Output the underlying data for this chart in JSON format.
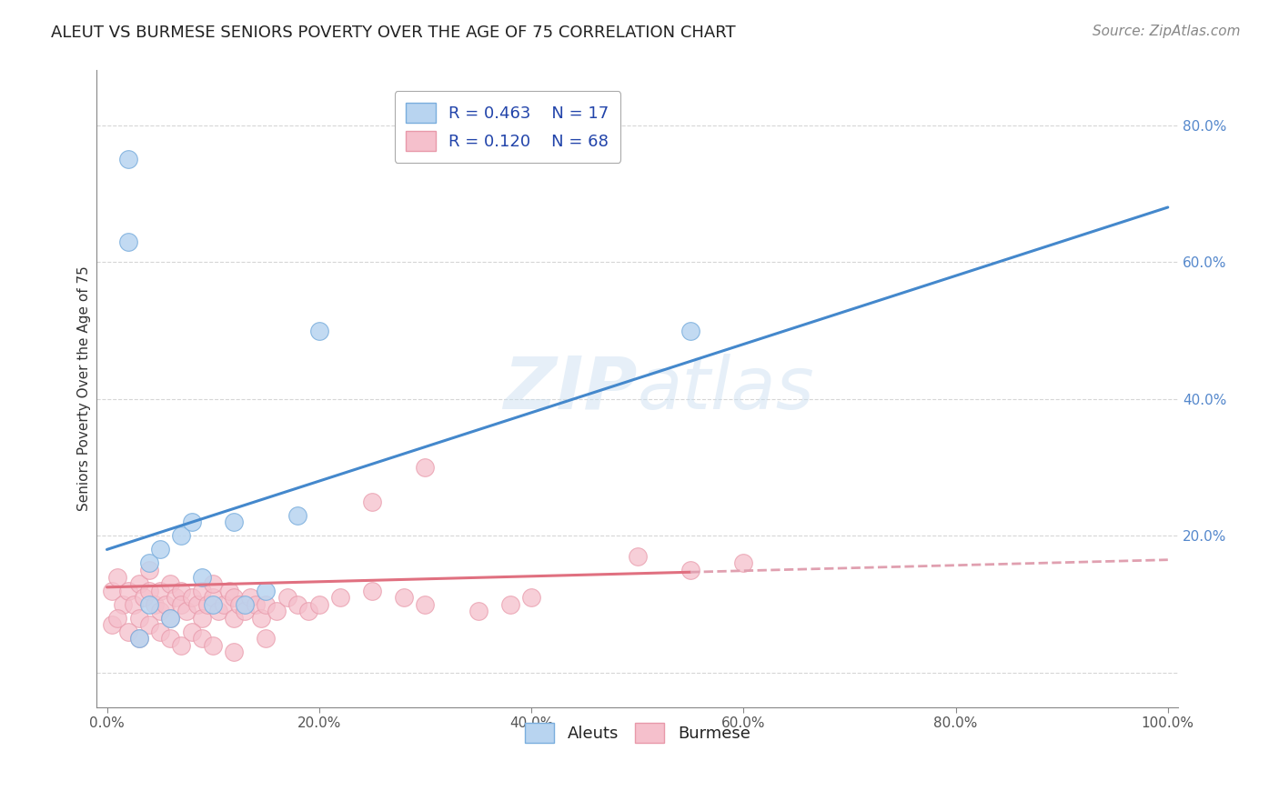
{
  "title": "ALEUT VS BURMESE SENIORS POVERTY OVER THE AGE OF 75 CORRELATION CHART",
  "source": "Source: ZipAtlas.com",
  "ylabel": "Seniors Poverty Over the Age of 75",
  "xlabel": "",
  "xlim": [
    -0.01,
    1.01
  ],
  "ylim": [
    -0.05,
    0.88
  ],
  "background_color": "#ffffff",
  "watermark_line1": "ZIP",
  "watermark_line2": "atlas",
  "aleut_face": "#b8d4f0",
  "aleut_edge": "#7aaedd",
  "burmese_face": "#f5c0cc",
  "burmese_edge": "#e899aa",
  "aleut_R": 0.463,
  "aleut_N": 17,
  "burmese_R": 0.12,
  "burmese_N": 68,
  "aleut_line_x0": 0.0,
  "aleut_line_y0": 0.18,
  "aleut_line_x1": 1.0,
  "aleut_line_y1": 0.68,
  "burmese_line_x0": 0.0,
  "burmese_line_y0": 0.125,
  "burmese_line_x1": 1.0,
  "burmese_line_y1": 0.165,
  "aleut_x": [
    0.02,
    0.03,
    0.04,
    0.05,
    0.06,
    0.07,
    0.08,
    0.09,
    0.1,
    0.12,
    0.13,
    0.15,
    0.18,
    0.2,
    0.55,
    0.02,
    0.04
  ],
  "aleut_y": [
    0.63,
    0.05,
    0.16,
    0.18,
    0.08,
    0.2,
    0.22,
    0.14,
    0.1,
    0.22,
    0.1,
    0.12,
    0.23,
    0.5,
    0.5,
    0.75,
    0.1
  ],
  "burmese_x": [
    0.005,
    0.01,
    0.015,
    0.02,
    0.025,
    0.03,
    0.03,
    0.035,
    0.04,
    0.04,
    0.045,
    0.05,
    0.05,
    0.055,
    0.06,
    0.06,
    0.065,
    0.07,
    0.07,
    0.075,
    0.08,
    0.085,
    0.09,
    0.09,
    0.095,
    0.1,
    0.1,
    0.105,
    0.11,
    0.115,
    0.12,
    0.12,
    0.125,
    0.13,
    0.135,
    0.14,
    0.145,
    0.15,
    0.16,
    0.17,
    0.18,
    0.19,
    0.2,
    0.22,
    0.25,
    0.28,
    0.3,
    0.35,
    0.38,
    0.4,
    0.005,
    0.01,
    0.02,
    0.03,
    0.04,
    0.05,
    0.06,
    0.07,
    0.08,
    0.09,
    0.1,
    0.12,
    0.15,
    0.5,
    0.55,
    0.6,
    0.25,
    0.3
  ],
  "burmese_y": [
    0.12,
    0.14,
    0.1,
    0.12,
    0.1,
    0.13,
    0.08,
    0.11,
    0.12,
    0.15,
    0.1,
    0.09,
    0.12,
    0.1,
    0.13,
    0.08,
    0.11,
    0.12,
    0.1,
    0.09,
    0.11,
    0.1,
    0.12,
    0.08,
    0.1,
    0.11,
    0.13,
    0.09,
    0.1,
    0.12,
    0.11,
    0.08,
    0.1,
    0.09,
    0.11,
    0.1,
    0.08,
    0.1,
    0.09,
    0.11,
    0.1,
    0.09,
    0.1,
    0.11,
    0.12,
    0.11,
    0.1,
    0.09,
    0.1,
    0.11,
    0.07,
    0.08,
    0.06,
    0.05,
    0.07,
    0.06,
    0.05,
    0.04,
    0.06,
    0.05,
    0.04,
    0.03,
    0.05,
    0.17,
    0.15,
    0.16,
    0.25,
    0.3
  ],
  "grid_color": "#cccccc",
  "title_fontsize": 13,
  "label_fontsize": 11,
  "tick_fontsize": 11,
  "legend_fontsize": 13,
  "source_fontsize": 11,
  "aleut_line_color": "#4488cc",
  "burmese_line_color": "#e07080",
  "burmese_line_dash_color": "#e0a0b0"
}
